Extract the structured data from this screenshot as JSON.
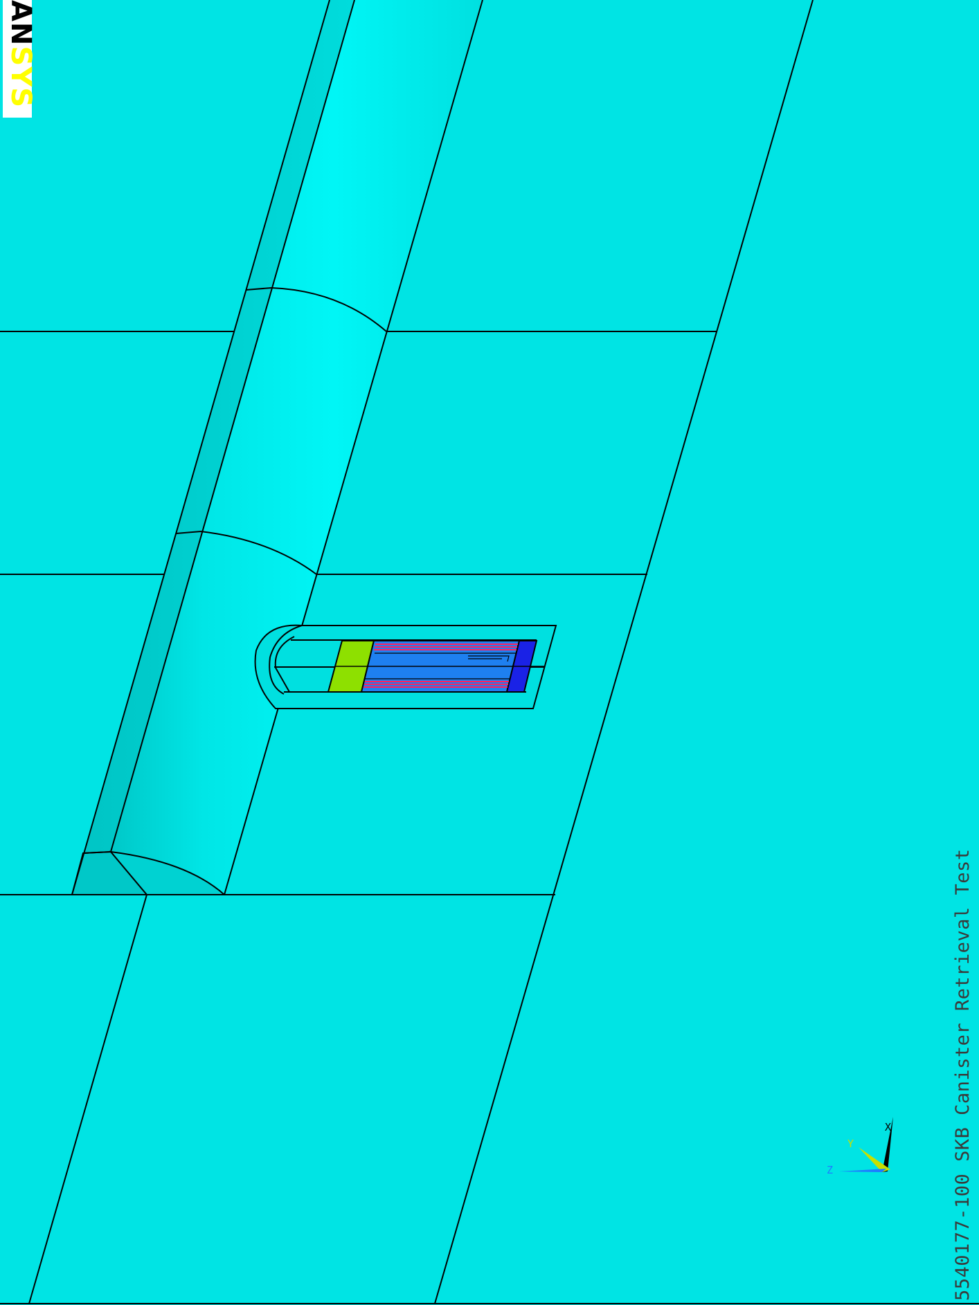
{
  "logo": {
    "part_dark": "AN",
    "part_yellow": "SYS",
    "colors": {
      "dark": "#000000",
      "yellow": "#ffff00",
      "background": "#ffffff"
    }
  },
  "title": "5540177-100 SKB Canister Retrieval Test",
  "triad": {
    "x_label": "X",
    "y_label": "Y",
    "z_label": "Z",
    "colors": {
      "x": "#000000",
      "y": "#c8e000",
      "z": "#1e7cff"
    }
  },
  "colors": {
    "rock": "#00e4e4",
    "tunnel_light": "#00f2f2",
    "tunnel_mid": "#00d8d8",
    "tunnel_dark": "#00bcbc",
    "canister": "#1e80f0",
    "canister_end": "#1a22e6",
    "plug": "#8ee000",
    "heater_lines": "#ff2060",
    "edges": "#000000"
  }
}
